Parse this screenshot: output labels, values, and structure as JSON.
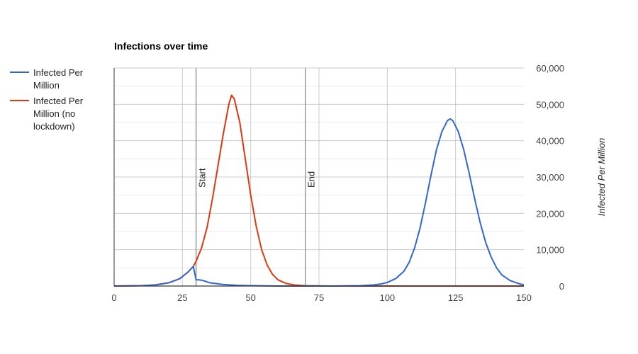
{
  "chart_data": {
    "type": "line",
    "title": "Infections over time",
    "xlabel": "",
    "ylabel": "Infected Per Million",
    "xlim": [
      0,
      150
    ],
    "ylim": [
      0,
      60000
    ],
    "x_ticks": [
      "0",
      "25",
      "50",
      "75",
      "100",
      "125",
      "150"
    ],
    "x_tick_values": [
      0,
      25,
      50,
      75,
      100,
      125,
      150
    ],
    "y_ticks": [
      "0",
      "10,000",
      "20,000",
      "30,000",
      "40,000",
      "50,000",
      "60,000"
    ],
    "y_tick_values": [
      0,
      10000,
      20000,
      30000,
      40000,
      50000,
      60000
    ],
    "y_axis_side": "right",
    "grid": true,
    "legend_position": "left",
    "annotations": [
      {
        "label": "Start",
        "x": 30
      },
      {
        "label": "End",
        "x": 70
      }
    ],
    "series": [
      {
        "name": "Infected Per Million",
        "color": "#3366cc",
        "points": [
          [
            0,
            0
          ],
          [
            10,
            100
          ],
          [
            15,
            300
          ],
          [
            20,
            900
          ],
          [
            24,
            2000
          ],
          [
            27,
            3800
          ],
          [
            29,
            5400
          ],
          [
            30,
            1700
          ],
          [
            31,
            1700
          ],
          [
            32,
            1600
          ],
          [
            33,
            1400
          ],
          [
            35,
            900
          ],
          [
            38,
            600
          ],
          [
            40,
            400
          ],
          [
            45,
            200
          ],
          [
            50,
            100
          ],
          [
            60,
            0
          ],
          [
            80,
            0
          ],
          [
            90,
            100
          ],
          [
            95,
            300
          ],
          [
            98,
            600
          ],
          [
            100,
            1000
          ],
          [
            103,
            2000
          ],
          [
            106,
            4000
          ],
          [
            108,
            6500
          ],
          [
            110,
            10500
          ],
          [
            112,
            16000
          ],
          [
            114,
            23000
          ],
          [
            116,
            30500
          ],
          [
            118,
            37500
          ],
          [
            120,
            42500
          ],
          [
            122,
            45500
          ],
          [
            123,
            46000
          ],
          [
            124,
            45500
          ],
          [
            126,
            42500
          ],
          [
            128,
            37500
          ],
          [
            130,
            31000
          ],
          [
            132,
            24000
          ],
          [
            134,
            17500
          ],
          [
            136,
            12000
          ],
          [
            138,
            8000
          ],
          [
            140,
            5000
          ],
          [
            142,
            3000
          ],
          [
            145,
            1500
          ],
          [
            148,
            700
          ],
          [
            150,
            300
          ]
        ]
      },
      {
        "name": "Infected Per Million (no lockdown)",
        "color": "#dc3912",
        "points": [
          [
            0,
            0
          ],
          [
            10,
            100
          ],
          [
            15,
            300
          ],
          [
            20,
            900
          ],
          [
            24,
            2000
          ],
          [
            27,
            3800
          ],
          [
            29,
            5400
          ],
          [
            30,
            6800
          ],
          [
            32,
            10500
          ],
          [
            34,
            16000
          ],
          [
            36,
            24000
          ],
          [
            38,
            33000
          ],
          [
            40,
            42000
          ],
          [
            42,
            50000
          ],
          [
            43,
            52500
          ],
          [
            44,
            51500
          ],
          [
            46,
            45000
          ],
          [
            48,
            35000
          ],
          [
            50,
            25000
          ],
          [
            52,
            16500
          ],
          [
            54,
            10000
          ],
          [
            56,
            5800
          ],
          [
            58,
            3200
          ],
          [
            60,
            1700
          ],
          [
            63,
            700
          ],
          [
            66,
            300
          ],
          [
            70,
            100
          ],
          [
            80,
            0
          ],
          [
            150,
            0
          ]
        ]
      }
    ]
  }
}
